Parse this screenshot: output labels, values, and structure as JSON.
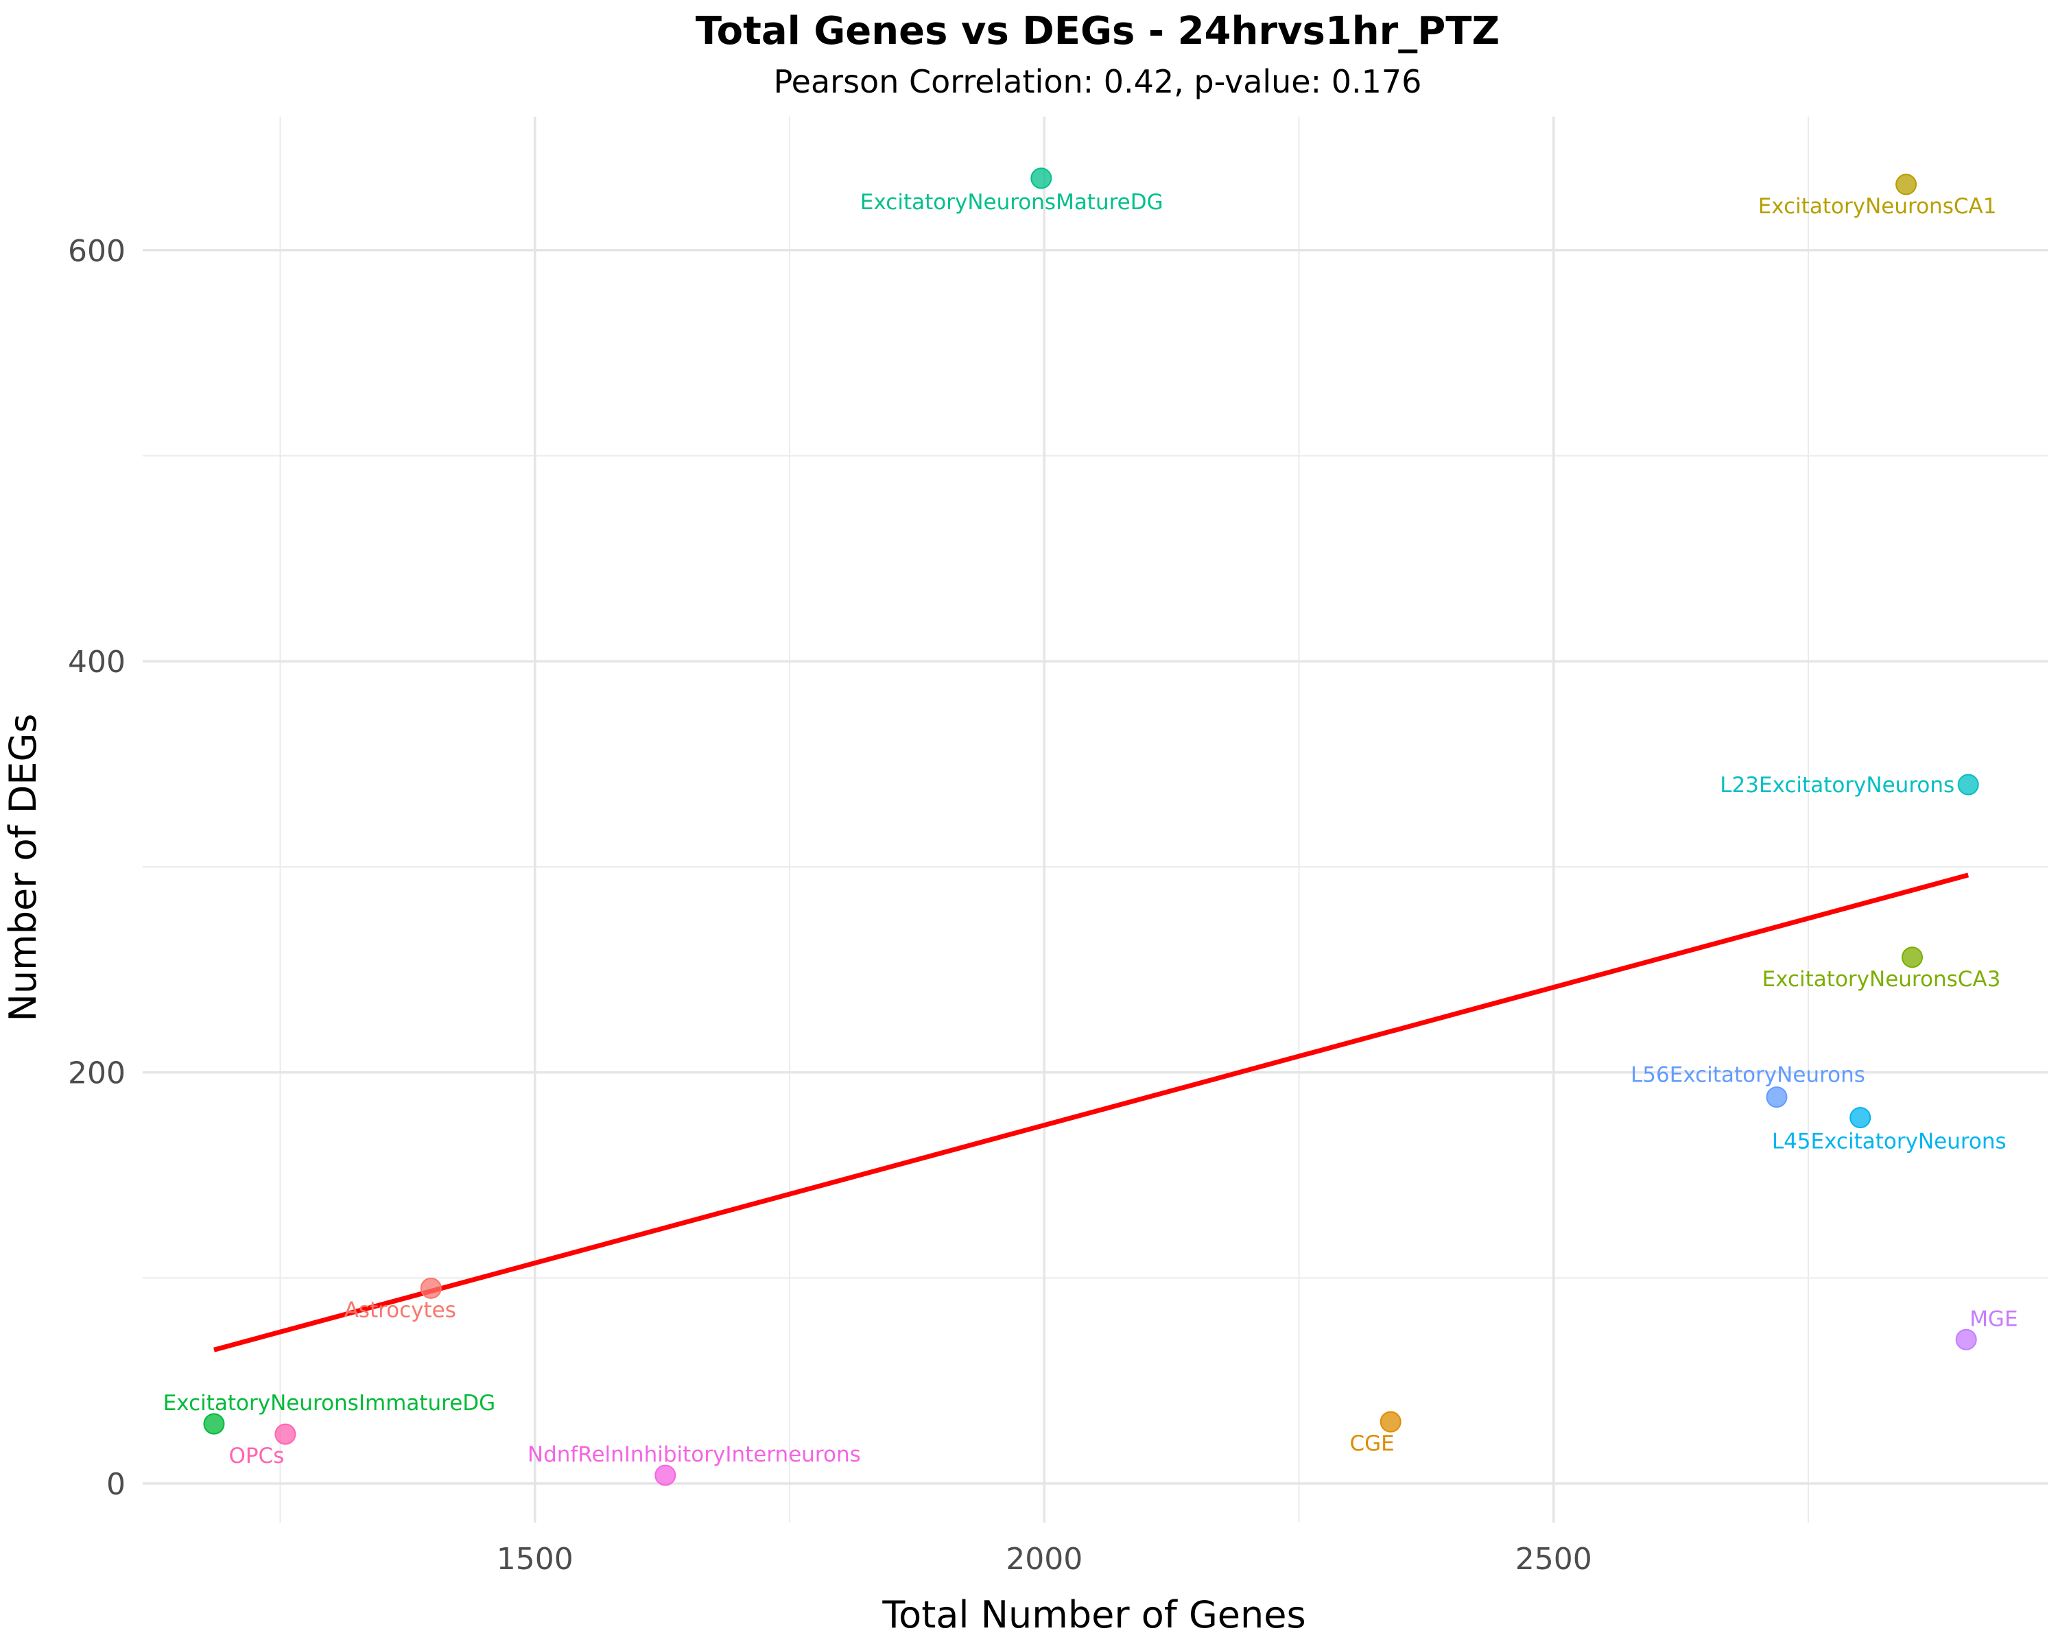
{
  "chart_data": {
    "type": "scatter",
    "title": "Total Genes vs DEGs - 24hrvs1hr_PTZ",
    "subtitle": "Pearson Correlation: 0.42, p-value: 0.176",
    "xlabel": "Total Number of Genes",
    "ylabel": "Number of DEGs",
    "xlim": [
      1115,
      2985
    ],
    "ylim": [
      -19,
      665
    ],
    "xticks": [
      1500,
      2000,
      2500
    ],
    "yticks": [
      0,
      200,
      400,
      600
    ],
    "grid": true,
    "legend": "none",
    "points": [
      {
        "label": "Astrocytes",
        "x": 1398,
        "y": 95,
        "color": "#F8766D"
      },
      {
        "label": "CGE",
        "x": 2340,
        "y": 30,
        "color": "#DE8C00"
      },
      {
        "label": "ExcitatoryNeuronsCA1",
        "x": 2846,
        "y": 632,
        "color": "#B79F00"
      },
      {
        "label": "ExcitatoryNeuronsCA3",
        "x": 2852,
        "y": 256,
        "color": "#7CAE00"
      },
      {
        "label": "ExcitatoryNeuronsImmatureDG",
        "x": 1185,
        "y": 29,
        "color": "#00BA38"
      },
      {
        "label": "ExcitatoryNeuronsMatureDG",
        "x": 1997,
        "y": 635,
        "color": "#00C08B"
      },
      {
        "label": "L23ExcitatoryNeurons",
        "x": 2907,
        "y": 340,
        "color": "#00BFC4"
      },
      {
        "label": "L45ExcitatoryNeurons",
        "x": 2801,
        "y": 178,
        "color": "#00B4F0"
      },
      {
        "label": "L56ExcitatoryNeurons",
        "x": 2719,
        "y": 188,
        "color": "#619CFF"
      },
      {
        "label": "MGE",
        "x": 2905,
        "y": 70,
        "color": "#C77CFF"
      },
      {
        "label": "NdnfRelnInhibitoryInterneurons",
        "x": 1628,
        "y": 4,
        "color": "#F564E3"
      },
      {
        "label": "OPCs",
        "x": 1255,
        "y": 24,
        "color": "#FF64B0"
      }
    ],
    "trend_line": {
      "color": "#FF0000",
      "x": [
        1185,
        2907
      ],
      "y": [
        65,
        296
      ]
    }
  }
}
